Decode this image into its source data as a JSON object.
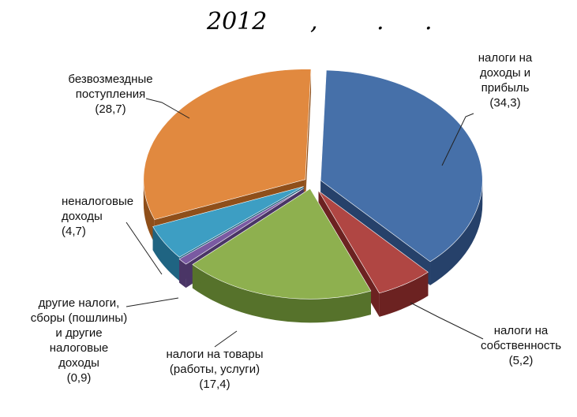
{
  "chart_data": {
    "type": "pie",
    "title_parts": [
      "2012",
      ",",
      ".",
      "."
    ],
    "slices": [
      {
        "label_lines": [
          "налоги на",
          "доходы и",
          "прибыль",
          "(34,3)"
        ],
        "value": 34.3,
        "color": "#4670a9",
        "side": "#26416a"
      },
      {
        "label_lines": [
          "налоги на",
          "собственность",
          "(5,2)"
        ],
        "value": 5.2,
        "color": "#b04643",
        "side": "#6c2221"
      },
      {
        "label_lines": [
          "налоги на товары",
          "(работы, услуги)",
          "(17,4)"
        ],
        "value": 17.4,
        "color": "#8eb04f",
        "side": "#56722b"
      },
      {
        "label_lines": [
          "другие налоги,",
          "сборы (пошлины)",
          "и другие",
          "налоговые",
          "доходы",
          "(0,9)"
        ],
        "value": 0.9,
        "color": "#7a5aa2",
        "side": "#4a3566"
      },
      {
        "label_lines": [
          "неналоговые",
          "доходы",
          "(4,7)"
        ],
        "value": 4.7,
        "color": "#3d9ec3",
        "side": "#1f6482"
      },
      {
        "label_lines": [
          "безвозмездные",
          "поступления",
          "(28,7)"
        ],
        "value": 28.7,
        "color": "#e1893f",
        "side": "#8f4f1a"
      }
    ]
  }
}
